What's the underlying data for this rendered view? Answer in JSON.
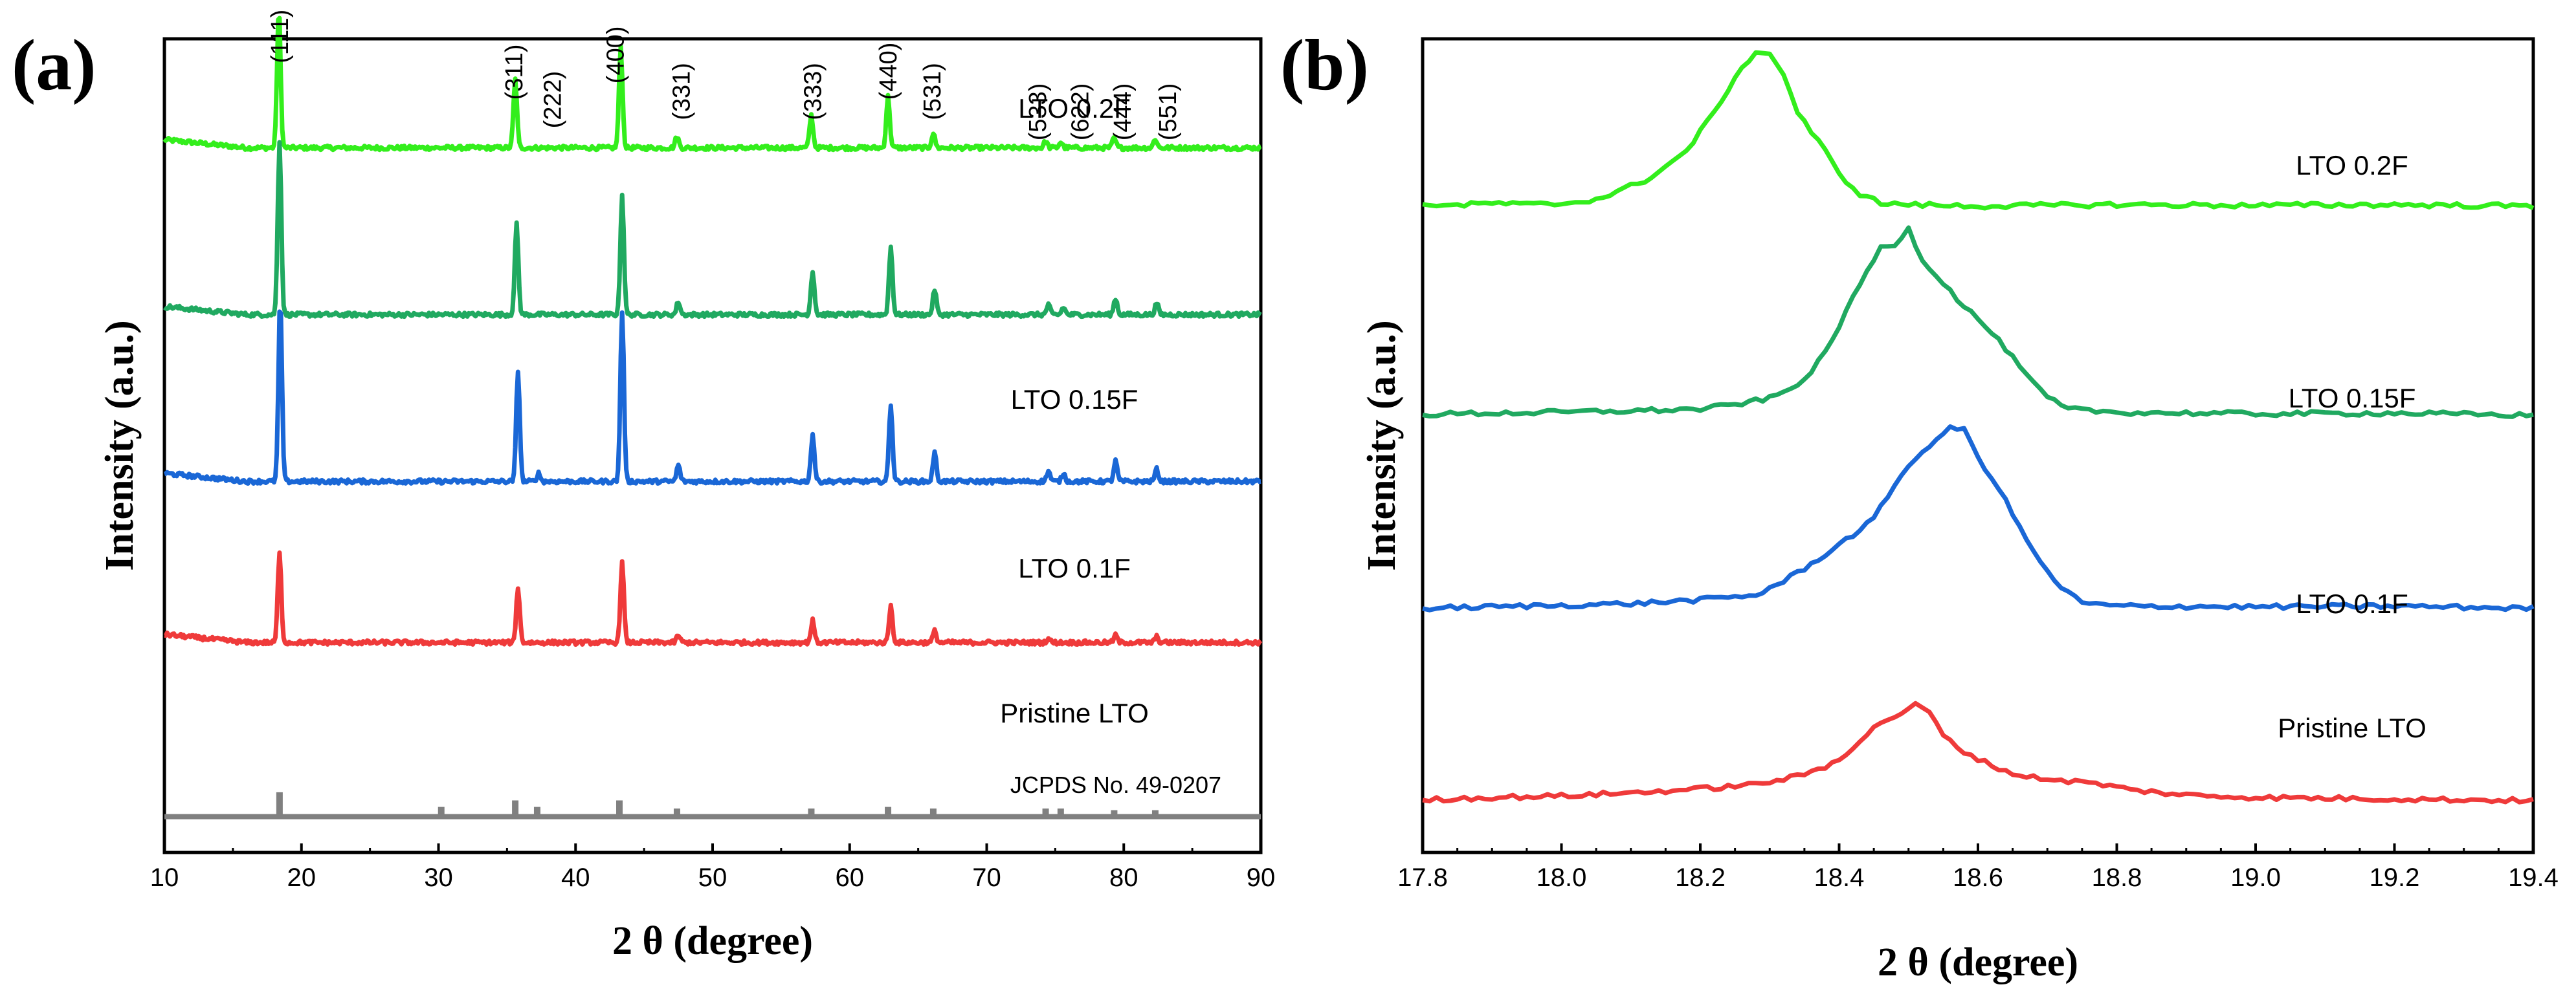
{
  "chart_data": [
    {
      "type": "line",
      "panel_label": "(a)",
      "xlabel": "2 θ (degree)",
      "ylabel": "Intensity (a.u.)",
      "xlim": [
        10,
        90
      ],
      "x_ticks": [
        "10",
        "20",
        "30",
        "40",
        "50",
        "60",
        "70",
        "80",
        "90"
      ],
      "colors": {
        "lto_0_2f": "#33ee1c",
        "lto_0_15f": "#20a960",
        "lto_0_1f": "#1a67d6",
        "pristine": "#ef3a3a",
        "reference": "#808080"
      },
      "series": [
        {
          "key": "lto_0_2f",
          "name": "LTO 0.2F",
          "baseline": 0.866,
          "peaks": [
            [
              18.35,
              0.17
            ],
            [
              35.6,
              0.084
            ],
            [
              43.3,
              0.125
            ],
            [
              47.4,
              0.014
            ],
            [
              57.2,
              0.04
            ],
            [
              62.8,
              0.063
            ],
            [
              66.1,
              0.018
            ],
            [
              74.3,
              0.008
            ],
            [
              75.4,
              0.007
            ],
            [
              79.3,
              0.012
            ],
            [
              82.3,
              0.011
            ]
          ]
        },
        {
          "key": "lto_0_15f",
          "name": "LTO 0.15F",
          "baseline": 0.661,
          "peaks": [
            [
              18.4,
              0.214
            ],
            [
              35.7,
              0.112
            ],
            [
              43.4,
              0.147
            ],
            [
              47.5,
              0.016
            ],
            [
              57.3,
              0.054
            ],
            [
              63.0,
              0.083
            ],
            [
              66.2,
              0.031
            ],
            [
              74.5,
              0.012
            ],
            [
              75.6,
              0.009
            ],
            [
              79.4,
              0.02
            ],
            [
              82.4,
              0.014
            ]
          ]
        },
        {
          "key": "lto_0_1f",
          "name": "LTO 0.1F",
          "baseline": 0.456,
          "peaks": [
            [
              18.45,
              0.223
            ],
            [
              35.8,
              0.137
            ],
            [
              37.3,
              0.01
            ],
            [
              43.4,
              0.209
            ],
            [
              47.5,
              0.02
            ],
            [
              57.3,
              0.058
            ],
            [
              63.0,
              0.095
            ],
            [
              66.2,
              0.035
            ],
            [
              74.5,
              0.013
            ],
            [
              75.6,
              0.01
            ],
            [
              79.4,
              0.025
            ],
            [
              82.4,
              0.015
            ]
          ]
        },
        {
          "key": "pristine",
          "name": "Pristine LTO",
          "baseline": 0.258,
          "peaks": [
            [
              18.4,
              0.11
            ],
            [
              35.8,
              0.068
            ],
            [
              43.4,
              0.098
            ],
            [
              47.5,
              0.009
            ],
            [
              57.3,
              0.027
            ],
            [
              63.0,
              0.045
            ],
            [
              66.2,
              0.014
            ],
            [
              74.5,
              0.005
            ],
            [
              79.4,
              0.009
            ],
            [
              82.4,
              0.007
            ]
          ]
        }
      ],
      "reference": {
        "name": "JCPDS No. 49-0207",
        "baseline": 0.044,
        "lines": [
          [
            18.4,
            0.03
          ],
          [
            30.2,
            0.012
          ],
          [
            35.6,
            0.02
          ],
          [
            37.2,
            0.012
          ],
          [
            43.2,
            0.02
          ],
          [
            47.4,
            0.01
          ],
          [
            57.2,
            0.01
          ],
          [
            62.8,
            0.012
          ],
          [
            66.1,
            0.01
          ],
          [
            74.3,
            0.01
          ],
          [
            75.4,
            0.01
          ],
          [
            79.3,
            0.008
          ],
          [
            82.3,
            0.008
          ]
        ]
      },
      "peak_labels": [
        {
          "text": "(111)",
          "x": 18.4,
          "y": 0.97
        },
        {
          "text": "(311)",
          "x": 35.5,
          "y": 0.925
        },
        {
          "text": "(222)",
          "x": 38.3,
          "y": 0.89
        },
        {
          "text": "(400)",
          "x": 42.9,
          "y": 0.945
        },
        {
          "text": "(331)",
          "x": 47.7,
          "y": 0.9
        },
        {
          "text": "(333)",
          "x": 57.3,
          "y": 0.9
        },
        {
          "text": "(440)",
          "x": 62.8,
          "y": 0.925
        },
        {
          "text": "(531)",
          "x": 66.0,
          "y": 0.9
        },
        {
          "text": "(533)",
          "x": 73.7,
          "y": 0.875
        },
        {
          "text": "(622)",
          "x": 76.8,
          "y": 0.875
        },
        {
          "text": "(444)",
          "x": 79.9,
          "y": 0.875
        },
        {
          "text": "(551)",
          "x": 83.2,
          "y": 0.875
        }
      ]
    },
    {
      "type": "line",
      "panel_label": "(b)",
      "xlabel": "2 θ (degree)",
      "ylabel": "Intensity (a.u.)",
      "xlim": [
        17.8,
        19.4
      ],
      "x_ticks": [
        "17.8",
        "18.0",
        "18.2",
        "18.4",
        "18.6",
        "18.8",
        "19.0",
        "19.2",
        "19.4"
      ],
      "colors": {
        "lto_0_2f": "#33ee1c",
        "lto_0_15f": "#20a960",
        "lto_0_1f": "#1a67d6",
        "pristine": "#ef3a3a"
      },
      "series": [
        {
          "key": "lto_0_2f",
          "name": "LTO 0.2F",
          "x": [
            17.8,
            17.85,
            17.9,
            17.95,
            18.0,
            18.05,
            18.08,
            18.1,
            18.12,
            18.15,
            18.18,
            18.2,
            18.22,
            18.24,
            18.26,
            18.28,
            18.3,
            18.32,
            18.34,
            18.36,
            18.38,
            18.4,
            18.43,
            18.46,
            18.5,
            18.6,
            18.8,
            19.0,
            19.2,
            19.4
          ],
          "y": [
            0.747,
            0.745,
            0.748,
            0.746,
            0.747,
            0.753,
            0.762,
            0.77,
            0.777,
            0.795,
            0.815,
            0.84,
            0.865,
            0.895,
            0.92,
            0.945,
            0.94,
            0.915,
            0.865,
            0.84,
            0.815,
            0.785,
            0.76,
            0.748,
            0.746,
            0.744,
            0.746,
            0.745,
            0.746,
            0.744
          ]
        },
        {
          "key": "lto_0_15f",
          "name": "LTO 0.15F",
          "x": [
            17.8,
            17.9,
            18.0,
            18.1,
            18.2,
            18.25,
            18.3,
            18.33,
            18.36,
            18.38,
            18.4,
            18.42,
            18.44,
            18.46,
            18.48,
            18.5,
            18.52,
            18.55,
            18.58,
            18.61,
            18.64,
            18.67,
            18.7,
            18.73,
            18.8,
            19.0,
            19.2,
            19.4
          ],
          "y": [
            0.475,
            0.477,
            0.478,
            0.48,
            0.482,
            0.488,
            0.496,
            0.508,
            0.53,
            0.555,
            0.59,
            0.625,
            0.66,
            0.69,
            0.695,
            0.715,
            0.675,
            0.645,
            0.615,
            0.59,
            0.56,
            0.525,
            0.497,
            0.482,
            0.478,
            0.476,
            0.477,
            0.474
          ]
        },
        {
          "key": "lto_0_1f",
          "name": "LTO 0.1F",
          "x": [
            17.8,
            17.9,
            18.0,
            18.1,
            18.2,
            18.28,
            18.32,
            18.36,
            18.38,
            18.42,
            18.45,
            18.48,
            18.51,
            18.54,
            18.56,
            18.58,
            18.6,
            18.63,
            18.66,
            18.69,
            18.72,
            18.75,
            18.8,
            19.0,
            19.2,
            19.4
          ],
          "y": [
            0.225,
            0.227,
            0.229,
            0.231,
            0.236,
            0.242,
            0.26,
            0.282,
            0.295,
            0.32,
            0.34,
            0.385,
            0.42,
            0.44,
            0.46,
            0.455,
            0.42,
            0.38,
            0.33,
            0.283,
            0.252,
            0.232,
            0.228,
            0.227,
            0.228,
            0.225
          ]
        },
        {
          "key": "pristine",
          "name": "Pristine LTO",
          "x": [
            17.8,
            17.9,
            18.0,
            18.1,
            18.2,
            18.28,
            18.34,
            18.38,
            18.41,
            18.44,
            18.46,
            18.49,
            18.51,
            18.53,
            18.55,
            18.58,
            18.62,
            18.66,
            18.72,
            18.77,
            18.82,
            18.9,
            19.0,
            19.2,
            19.4
          ],
          "y": [
            -0.022,
            -0.019,
            -0.017,
            -0.013,
            -0.008,
            -0.002,
            0.008,
            0.02,
            0.038,
            0.062,
            0.078,
            0.09,
            0.1,
            0.092,
            0.06,
            0.04,
            0.022,
            0.009,
            0.003,
            -0.001,
            -0.009,
            -0.016,
            -0.019,
            -0.021,
            -0.023
          ]
        }
      ]
    }
  ]
}
